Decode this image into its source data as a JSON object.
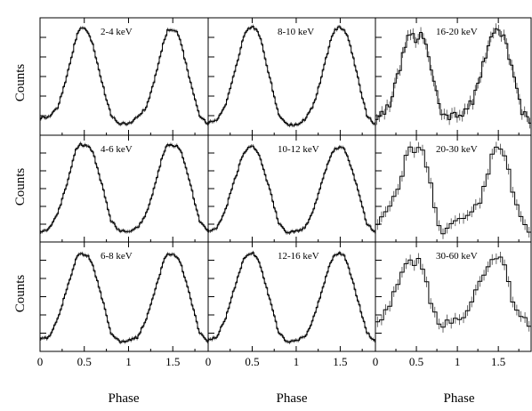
{
  "chart_data": {
    "type": "line",
    "layout": "3x3 grid",
    "ylabel": "Counts",
    "xlabel": "Phase",
    "xlim": [
      0,
      1.9
    ],
    "xticks": [
      0,
      0.5,
      1,
      1.5
    ],
    "xtick_labels": [
      "0",
      "0.5",
      "1",
      "1.5"
    ],
    "y_tick_labels_shown": false,
    "panels": [
      {
        "label": "2-4 keV",
        "phase": [
          0,
          0.1,
          0.2,
          0.3,
          0.4,
          0.45,
          0.5,
          0.55,
          0.6,
          0.7,
          0.8,
          0.9,
          1.0,
          1.1,
          1.2,
          1.3,
          1.4,
          1.45,
          1.5,
          1.55,
          1.6,
          1.7,
          1.8,
          1.9
        ],
        "counts": [
          0.12,
          0.13,
          0.22,
          0.5,
          0.85,
          0.98,
          0.96,
          0.92,
          0.8,
          0.45,
          0.15,
          0.06,
          0.07,
          0.12,
          0.22,
          0.5,
          0.85,
          0.96,
          0.95,
          0.93,
          0.8,
          0.45,
          0.15,
          0.06
        ]
      },
      {
        "label": "8-10 keV",
        "phase": [
          0,
          0.1,
          0.2,
          0.3,
          0.4,
          0.45,
          0.5,
          0.55,
          0.6,
          0.7,
          0.8,
          0.9,
          1.0,
          1.1,
          1.2,
          1.3,
          1.4,
          1.45,
          1.5,
          1.55,
          1.6,
          1.7,
          1.8,
          1.9
        ],
        "counts": [
          0.08,
          0.1,
          0.25,
          0.55,
          0.88,
          0.97,
          0.98,
          0.95,
          0.85,
          0.5,
          0.15,
          0.05,
          0.06,
          0.1,
          0.25,
          0.55,
          0.88,
          0.96,
          0.98,
          0.95,
          0.85,
          0.5,
          0.15,
          0.05
        ]
      },
      {
        "label": "16-20 keV",
        "phase": [
          0,
          0.1,
          0.2,
          0.3,
          0.4,
          0.45,
          0.5,
          0.55,
          0.6,
          0.7,
          0.8,
          0.9,
          1.0,
          1.1,
          1.2,
          1.3,
          1.4,
          1.45,
          1.5,
          1.55,
          1.6,
          1.7,
          1.8,
          1.9
        ],
        "counts": [
          0.12,
          0.15,
          0.3,
          0.6,
          0.9,
          0.93,
          0.85,
          0.95,
          0.85,
          0.5,
          0.18,
          0.12,
          0.15,
          0.18,
          0.3,
          0.58,
          0.85,
          0.92,
          0.95,
          0.9,
          0.8,
          0.45,
          0.15,
          0.1
        ]
      },
      {
        "label": "4-6 keV",
        "phase": [
          0,
          0.1,
          0.2,
          0.3,
          0.4,
          0.45,
          0.5,
          0.55,
          0.6,
          0.7,
          0.8,
          0.9,
          1.0,
          1.1,
          1.2,
          1.3,
          1.4,
          1.45,
          1.5,
          1.55,
          1.6,
          1.7,
          1.8,
          1.9
        ],
        "counts": [
          0.06,
          0.09,
          0.25,
          0.55,
          0.9,
          0.98,
          0.96,
          0.95,
          0.88,
          0.55,
          0.18,
          0.07,
          0.07,
          0.1,
          0.25,
          0.55,
          0.9,
          0.97,
          0.96,
          0.95,
          0.88,
          0.55,
          0.18,
          0.07
        ]
      },
      {
        "label": "10-12 keV",
        "phase": [
          0,
          0.1,
          0.2,
          0.3,
          0.4,
          0.45,
          0.5,
          0.55,
          0.6,
          0.7,
          0.8,
          0.9,
          1.0,
          1.1,
          1.2,
          1.3,
          1.4,
          1.45,
          1.5,
          1.55,
          1.6,
          1.7,
          1.8,
          1.9
        ],
        "counts": [
          0.07,
          0.1,
          0.3,
          0.6,
          0.88,
          0.93,
          0.95,
          0.92,
          0.8,
          0.5,
          0.15,
          0.05,
          0.07,
          0.1,
          0.3,
          0.6,
          0.88,
          0.93,
          0.94,
          0.92,
          0.8,
          0.5,
          0.15,
          0.05
        ]
      },
      {
        "label": "20-30 keV",
        "phase": [
          0,
          0.1,
          0.2,
          0.3,
          0.4,
          0.45,
          0.5,
          0.55,
          0.6,
          0.7,
          0.8,
          0.9,
          1.0,
          1.1,
          1.2,
          1.3,
          1.4,
          1.45,
          1.5,
          1.55,
          1.6,
          1.7,
          1.8,
          1.9
        ],
        "counts": [
          0.12,
          0.2,
          0.35,
          0.6,
          0.9,
          0.95,
          0.88,
          0.92,
          0.85,
          0.45,
          0.05,
          0.1,
          0.18,
          0.25,
          0.28,
          0.4,
          0.78,
          0.95,
          0.88,
          0.92,
          0.8,
          0.4,
          0.12,
          0.08
        ]
      },
      {
        "label": "6-8 keV",
        "phase": [
          0,
          0.1,
          0.2,
          0.3,
          0.4,
          0.45,
          0.5,
          0.55,
          0.6,
          0.7,
          0.8,
          0.9,
          1.0,
          1.1,
          1.2,
          1.3,
          1.4,
          1.45,
          1.5,
          1.55,
          1.6,
          1.7,
          1.8,
          1.9
        ],
        "counts": [
          0.08,
          0.1,
          0.28,
          0.58,
          0.88,
          0.96,
          0.93,
          0.92,
          0.82,
          0.5,
          0.15,
          0.05,
          0.07,
          0.1,
          0.28,
          0.58,
          0.88,
          0.95,
          0.94,
          0.92,
          0.82,
          0.5,
          0.15,
          0.05
        ]
      },
      {
        "label": "12-16 keV",
        "phase": [
          0,
          0.1,
          0.2,
          0.3,
          0.4,
          0.45,
          0.5,
          0.55,
          0.6,
          0.7,
          0.8,
          0.9,
          1.0,
          1.1,
          1.2,
          1.3,
          1.4,
          1.45,
          1.5,
          1.55,
          1.6,
          1.7,
          1.8,
          1.9
        ],
        "counts": [
          0.07,
          0.1,
          0.3,
          0.6,
          0.88,
          0.94,
          0.96,
          0.92,
          0.8,
          0.48,
          0.15,
          0.05,
          0.07,
          0.1,
          0.3,
          0.6,
          0.88,
          0.94,
          0.95,
          0.92,
          0.8,
          0.48,
          0.15,
          0.05
        ]
      },
      {
        "label": "30-60 keV",
        "phase": [
          0,
          0.1,
          0.2,
          0.3,
          0.4,
          0.45,
          0.5,
          0.55,
          0.6,
          0.7,
          0.8,
          0.9,
          1.0,
          1.1,
          1.2,
          1.3,
          1.4,
          1.45,
          1.5,
          1.55,
          1.6,
          1.7,
          1.8,
          1.9
        ],
        "counts": [
          0.22,
          0.3,
          0.5,
          0.72,
          0.85,
          0.9,
          0.8,
          0.92,
          0.7,
          0.4,
          0.2,
          0.25,
          0.3,
          0.28,
          0.55,
          0.7,
          0.82,
          0.9,
          0.85,
          0.95,
          0.7,
          0.4,
          0.3,
          0.22
        ]
      }
    ]
  }
}
